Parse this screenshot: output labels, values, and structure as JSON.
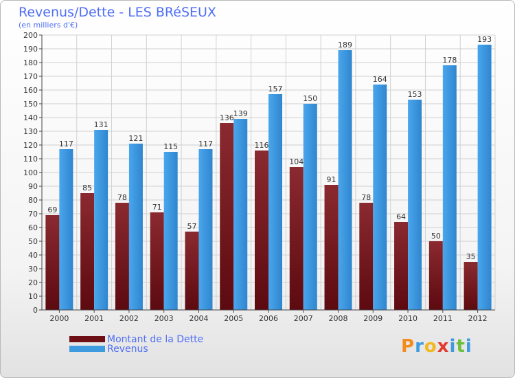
{
  "chart_data": {
    "type": "bar",
    "title": "Revenus/Dette - LES BRéSEUX",
    "subtitle": "(en milliers d'€)",
    "xlabel": "",
    "ylabel": "",
    "ylim": [
      0,
      200
    ],
    "yticks": [
      0,
      10,
      20,
      30,
      40,
      50,
      60,
      70,
      80,
      90,
      100,
      110,
      120,
      130,
      140,
      150,
      160,
      170,
      180,
      190,
      200
    ],
    "grid": true,
    "legend_position": "bottom-left",
    "categories": [
      "2000",
      "2001",
      "2002",
      "2003",
      "2004",
      "2005",
      "2006",
      "2007",
      "2008",
      "2009",
      "2010",
      "2011",
      "2012"
    ],
    "series": [
      {
        "name": "Montant de la Dette",
        "color": "#7a1c22",
        "values": [
          69,
          85,
          78,
          71,
          57,
          136,
          116,
          104,
          91,
          78,
          64,
          50,
          35
        ]
      },
      {
        "name": "Revenus",
        "color": "#3f9be0",
        "values": [
          117,
          131,
          121,
          115,
          117,
          139,
          157,
          150,
          189,
          164,
          153,
          178,
          193
        ]
      }
    ]
  },
  "logo": {
    "letters": [
      "P",
      "r",
      "o",
      "x",
      "i",
      "t",
      "i"
    ]
  }
}
